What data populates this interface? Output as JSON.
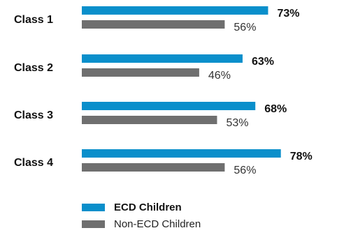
{
  "chart_data": {
    "type": "bar",
    "orientation": "horizontal",
    "categories": [
      "Class 1",
      "Class 2",
      "Class 3",
      "Class 4"
    ],
    "series": [
      {
        "name": "ECD Children",
        "values": [
          73,
          63,
          68,
          78
        ],
        "labels": [
          "73%",
          "63%",
          "68%",
          "78%"
        ],
        "color": "#0a8fcb"
      },
      {
        "name": "Non-ECD Children",
        "values": [
          56,
          46,
          53,
          56
        ],
        "labels": [
          "56%",
          "46%",
          "53%",
          "56%"
        ],
        "color": "#6f6f6f"
      }
    ],
    "unit": "%",
    "grid": false,
    "legend_position": "bottom-left"
  }
}
